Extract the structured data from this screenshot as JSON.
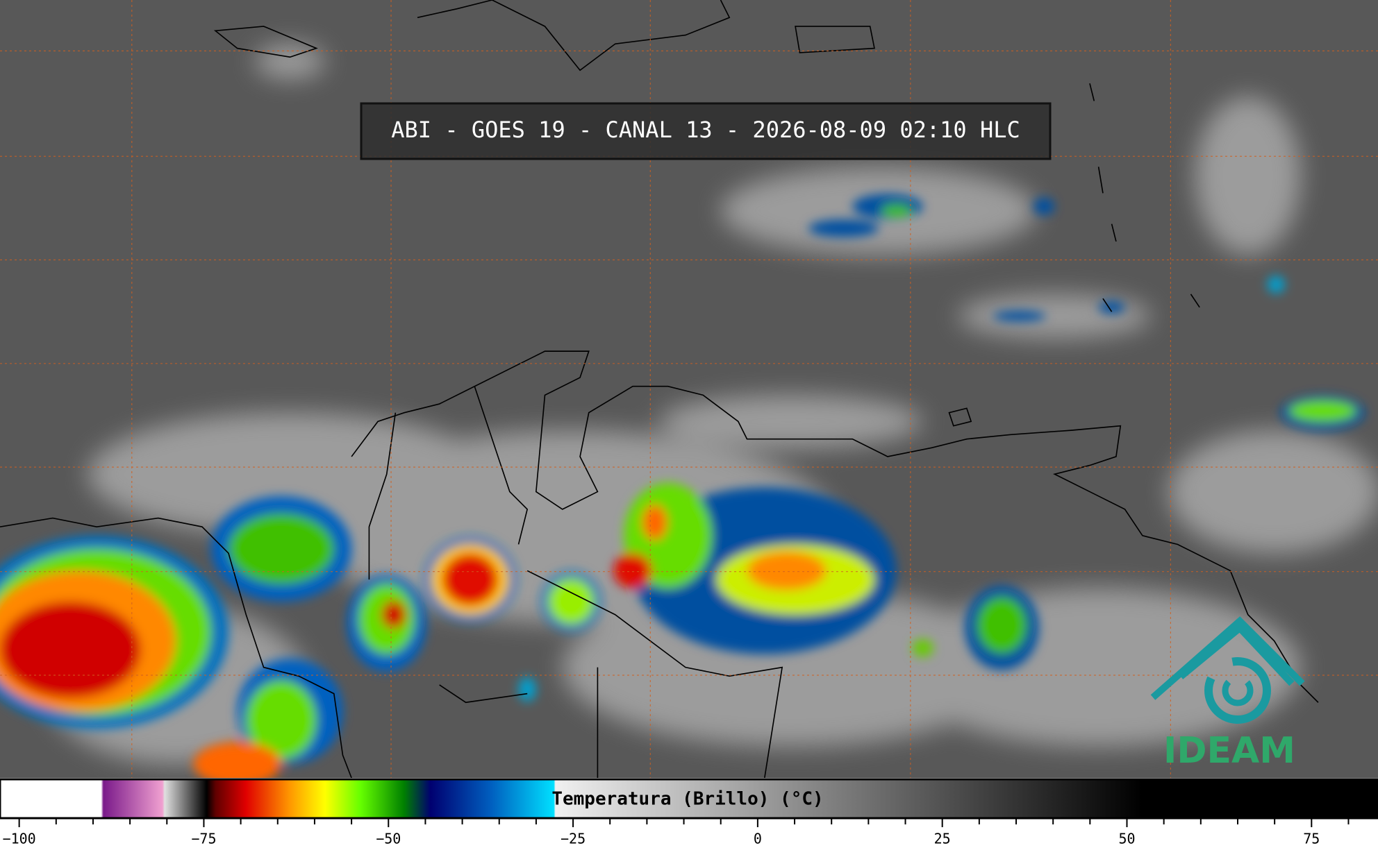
{
  "title": "ABI - GOES 19 - CANAL 13 - 2026-08-09 02:10 HLC",
  "logo": "IDEAM",
  "colorbar": {
    "label": "Temperatura (Brillo) (°C)",
    "xlim": [
      -102.6,
      84
    ],
    "ticks": [
      {
        "value": -100,
        "label": "−100"
      },
      {
        "value": -75,
        "label": "−75"
      },
      {
        "value": -50,
        "label": "−50"
      },
      {
        "value": -25,
        "label": "−25"
      },
      0,
      25,
      50,
      75
    ],
    "minor_ticks": [
      -95,
      -90,
      -85,
      -80,
      -70,
      -65,
      -60,
      -55,
      -45,
      -40,
      -35,
      -30,
      -20,
      -15,
      -10,
      -5,
      5,
      10,
      15,
      20,
      30,
      35,
      40,
      45,
      55,
      60,
      65,
      70,
      80
    ],
    "colorscale": [
      {
        "value": -102.6,
        "color": "#ffffff"
      },
      {
        "value": -88.9,
        "color": "#ffffff"
      },
      {
        "value": -88.6,
        "color": "#7a1a8a"
      },
      {
        "value": -80.6,
        "color": "#f0a0d0"
      },
      {
        "value": -80.3,
        "color": "#e0e0e0"
      },
      {
        "value": -74.6,
        "color": "#000000"
      },
      {
        "value": -73.4,
        "color": "#600000"
      },
      {
        "value": -69.3,
        "color": "#e00000"
      },
      {
        "value": -63.3,
        "color": "#ff9900"
      },
      {
        "value": -58.6,
        "color": "#ffff00"
      },
      {
        "value": -53.8,
        "color": "#66ff00"
      },
      {
        "value": -47.9,
        "color": "#008000"
      },
      {
        "value": -44.3,
        "color": "#000070"
      },
      {
        "value": -36,
        "color": "#0060c0"
      },
      {
        "value": -27.6,
        "color": "#00e0ff"
      },
      {
        "value": -27.4,
        "color": "#f0f0f0"
      },
      {
        "value": 52.1,
        "color": "#000000"
      },
      {
        "value": 84,
        "color": "#000000"
      }
    ]
  }
}
